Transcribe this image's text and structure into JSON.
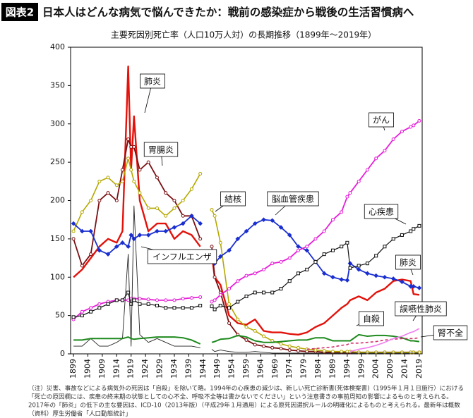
{
  "header": {
    "badge": "図表2",
    "title": "日本人はどんな病気で悩んできたか：戦前の感染症から戦後の生活習慣病へ"
  },
  "chart_data": {
    "type": "line",
    "title": "主要死因別死亡率（人口10万人対）の長期推移（1899年～2019年）",
    "x": [
      1899,
      1902,
      1905,
      1908,
      1911,
      1914,
      1916,
      1918,
      1919,
      1920,
      1922,
      1925,
      1928,
      1931,
      1934,
      1937,
      1940,
      1943,
      1945,
      1947,
      1948,
      1950,
      1953,
      1956,
      1959,
      1962,
      1965,
      1968,
      1971,
      1974,
      1977,
      1980,
      1983,
      1986,
      1989,
      1992,
      1994,
      1995,
      1998,
      2001,
      2004,
      2007,
      2010,
      2013,
      2016,
      2017,
      2019
    ],
    "xlim": [
      1898,
      2020
    ],
    "xticks": [
      1899,
      1904,
      1909,
      1914,
      1919,
      1924,
      1929,
      1934,
      1939,
      1944,
      1949,
      1954,
      1959,
      1964,
      1969,
      1974,
      1979,
      1984,
      1989,
      1994,
      1999,
      2004,
      2009,
      2014,
      2019
    ],
    "ylim": [
      0,
      400
    ],
    "yticks": [
      0,
      50,
      100,
      150,
      200,
      250,
      300,
      350,
      400
    ],
    "series": [
      {
        "name": "肺炎",
        "color": "#e3120b",
        "marker": "none",
        "width": 2.4,
        "values": [
          100,
          110,
          125,
          140,
          150,
          145,
          160,
          375,
          240,
          310,
          200,
          160,
          170,
          170,
          150,
          160,
          155,
          140,
          null,
          130,
          100,
          90,
          50,
          40,
          38,
          45,
          30,
          28,
          28,
          26,
          25,
          28,
          35,
          40,
          50,
          60,
          65,
          70,
          75,
          70,
          80,
          85,
          95,
          97,
          95,
          78,
          77
        ]
      },
      {
        "name": "胃腸炎",
        "color": "#7a0f12",
        "marker": "circle",
        "width": 1.8,
        "values": [
          150,
          115,
          130,
          200,
          210,
          200,
          240,
          280,
          270,
          270,
          240,
          250,
          230,
          210,
          200,
          180,
          180,
          150,
          null,
          140,
          100,
          80,
          40,
          25,
          18,
          12,
          10,
          8,
          7,
          5,
          4,
          3,
          3,
          2,
          2,
          2,
          2,
          2,
          2,
          2,
          2,
          2,
          2,
          2,
          2,
          2,
          2
        ]
      },
      {
        "name": "結核",
        "color": "#b5a800",
        "marker": "circle",
        "width": 1.6,
        "values": [
          160,
          185,
          200,
          225,
          230,
          220,
          225,
          255,
          240,
          225,
          210,
          190,
          190,
          180,
          190,
          200,
          215,
          235,
          null,
          188,
          180,
          145,
          65,
          45,
          35,
          30,
          23,
          17,
          13,
          10,
          8,
          6,
          5,
          4,
          3,
          3,
          3,
          3,
          2,
          2,
          2,
          2,
          2,
          2,
          2,
          2,
          2
        ]
      },
      {
        "name": "脳血管疾患",
        "color": "#1a2fd0",
        "marker": "diamond",
        "width": 1.8,
        "values": [
          170,
          160,
          160,
          135,
          130,
          140,
          145,
          140,
          155,
          150,
          155,
          155,
          160,
          160,
          165,
          170,
          180,
          170,
          null,
          130,
          118,
          127,
          135,
          150,
          160,
          170,
          175,
          174,
          165,
          155,
          140,
          135,
          120,
          105,
          100,
          97,
          96,
          118,
          110,
          105,
          102,
          100,
          98,
          94,
          88,
          88,
          86
        ]
      },
      {
        "name": "がん",
        "color": "#e61fd8",
        "marker": "circle",
        "width": 1.8,
        "values": [
          45,
          55,
          60,
          65,
          68,
          70,
          70,
          70,
          72,
          72,
          72,
          71,
          70,
          70,
          70,
          72,
          73,
          74,
          null,
          68,
          70,
          77,
          85,
          95,
          102,
          105,
          110,
          118,
          120,
          125,
          135,
          140,
          150,
          160,
          175,
          185,
          205,
          210,
          225,
          240,
          255,
          265,
          280,
          290,
          296,
          298,
          304
        ]
      },
      {
        "name": "心疾患",
        "color": "#111111",
        "marker": "square",
        "width": 1.2,
        "values": [
          48,
          50,
          55,
          60,
          65,
          70,
          70,
          80,
          65,
          70,
          65,
          65,
          63,
          60,
          60,
          60,
          60,
          63,
          null,
          62,
          58,
          63,
          60,
          68,
          75,
          80,
          80,
          80,
          85,
          95,
          105,
          110,
          120,
          130,
          135,
          140,
          145,
          112,
          115,
          118,
          128,
          140,
          150,
          155,
          160,
          163,
          167
        ]
      },
      {
        "name": "インフルエンザ",
        "color": "#222222",
        "marker": "none",
        "width": 0.9,
        "values": [
          10,
          10,
          20,
          10,
          10,
          15,
          20,
          130,
          10,
          193,
          25,
          15,
          20,
          15,
          10,
          10,
          10,
          8,
          null,
          6,
          3,
          5,
          3,
          2,
          2,
          3,
          2,
          1,
          1,
          1,
          1,
          1,
          1,
          1,
          1,
          1,
          1,
          1,
          1,
          1,
          1,
          1,
          1,
          1,
          1,
          1,
          1
        ]
      },
      {
        "name": "自殺",
        "color": "#1e8a1e",
        "marker": "none",
        "width": 2,
        "values": [
          18,
          18,
          20,
          20,
          20,
          20,
          20,
          22,
          20,
          19,
          20,
          21,
          22,
          22,
          22,
          21,
          18,
          13,
          null,
          15,
          16,
          19,
          20,
          24,
          22,
          17,
          15,
          15,
          16,
          17,
          18,
          18,
          21,
          21,
          17,
          17,
          17,
          17,
          25,
          23,
          24,
          24,
          23,
          21,
          17,
          17,
          16
        ]
      },
      {
        "name": "腎不全",
        "color": "#d0306a",
        "marker": "none",
        "width": 1.6,
        "dash": true,
        "values": [
          null,
          null,
          null,
          null,
          null,
          null,
          null,
          null,
          null,
          null,
          null,
          null,
          null,
          null,
          null,
          null,
          null,
          null,
          null,
          null,
          null,
          null,
          null,
          null,
          null,
          null,
          null,
          null,
          null,
          null,
          null,
          6,
          7,
          8,
          9,
          11,
          12,
          14,
          14,
          15,
          16,
          18,
          19,
          20,
          20,
          20,
          21
        ]
      },
      {
        "name": "誤嚥性肺炎",
        "color": "#f07cf0",
        "marker": "none",
        "width": 1.6,
        "values": [
          null,
          null,
          null,
          null,
          null,
          null,
          null,
          null,
          null,
          null,
          null,
          null,
          null,
          null,
          null,
          null,
          null,
          null,
          null,
          null,
          null,
          null,
          null,
          null,
          null,
          null,
          null,
          null,
          null,
          null,
          null,
          null,
          null,
          null,
          null,
          null,
          null,
          3,
          6,
          8,
          11,
          15,
          20,
          23,
          28,
          29,
          33
        ]
      }
    ]
  },
  "notes": [
    "（注）災害、事故などによる病気外の死因は「自殺」を除いて略。1994年の心疾患の減少は、新しい死亡診断書(死体検案書)（1995年１月１日施行）における",
    "「死亡の原因欄には、疾患の終末期の状態としての心不全、呼吸不全等は書かないでください」という注意書きの事前周知の影響によるものと考えられる。",
    "2017年の「肺炎」の低下の主な要因は、ICD-10（2013年版）（平成29年１月適用）による原死因選択ルールの明確化によるものと考えられる。最新年は概数",
    "（資料）厚生労働省「人口動態統計」"
  ]
}
